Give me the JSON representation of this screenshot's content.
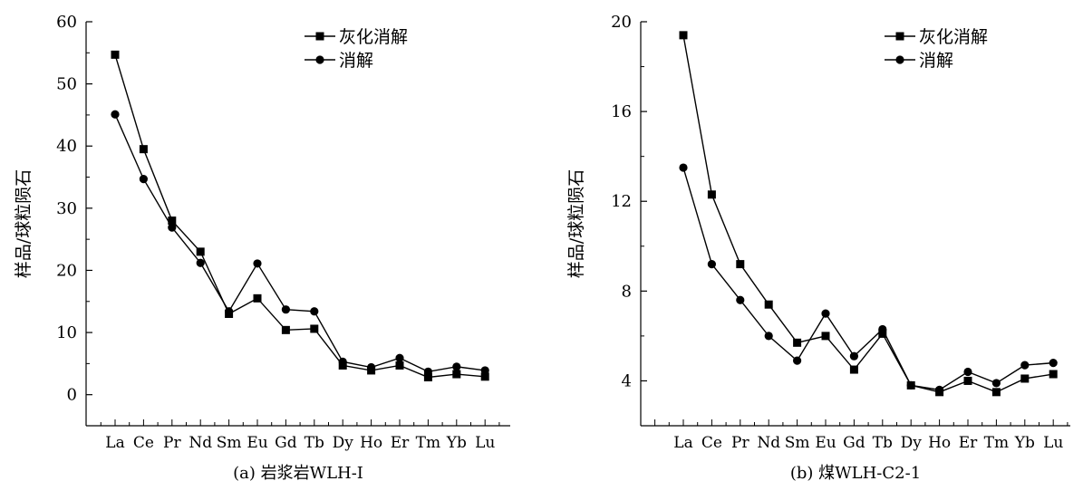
{
  "chart_data": [
    {
      "type": "line",
      "caption": "(a) 岩浆岩WLH-I",
      "ylabel": "样品/球粒陨石",
      "xlabel": "",
      "ylim": [
        -5,
        60
      ],
      "yticks": [
        0,
        10,
        20,
        30,
        40,
        50,
        60
      ],
      "categories": [
        "La",
        "Ce",
        "Pr",
        "Nd",
        "Sm",
        "Eu",
        "Gd",
        "Tb",
        "Dy",
        "Ho",
        "Er",
        "Tm",
        "Yb",
        "Lu"
      ],
      "legend_position": "top-right",
      "series": [
        {
          "name": "灰化消解",
          "marker": "square",
          "values": [
            54.7,
            39.5,
            28.0,
            23.0,
            13.0,
            15.5,
            10.4,
            10.6,
            4.7,
            3.9,
            4.7,
            2.8,
            3.3,
            2.9
          ]
        },
        {
          "name": "消解",
          "marker": "circle",
          "values": [
            45.1,
            34.7,
            26.9,
            21.2,
            13.4,
            21.1,
            13.7,
            13.4,
            5.3,
            4.4,
            5.9,
            3.7,
            4.5,
            3.9
          ]
        }
      ]
    },
    {
      "type": "line",
      "caption": "(b) 煤WLH-C2-1",
      "ylabel": "样品/球粒陨石",
      "xlabel": "",
      "ylim": [
        2,
        20
      ],
      "yticks": [
        4,
        8,
        12,
        16,
        20
      ],
      "categories": [
        "La",
        "Ce",
        "Pr",
        "Nd",
        "Sm",
        "Eu",
        "Gd",
        "Tb",
        "Dy",
        "Ho",
        "Er",
        "Tm",
        "Yb",
        "Lu"
      ],
      "legend_position": "top-right",
      "series": [
        {
          "name": "灰化消解",
          "marker": "square",
          "values": [
            19.4,
            12.3,
            9.2,
            7.4,
            5.7,
            6.0,
            4.5,
            6.1,
            3.8,
            3.5,
            4.0,
            3.5,
            4.1,
            4.3
          ]
        },
        {
          "name": "消解",
          "marker": "circle",
          "values": [
            13.5,
            9.2,
            7.6,
            6.0,
            4.9,
            7.0,
            5.1,
            6.3,
            3.8,
            3.6,
            4.4,
            3.9,
            4.7,
            4.8
          ]
        }
      ]
    }
  ]
}
